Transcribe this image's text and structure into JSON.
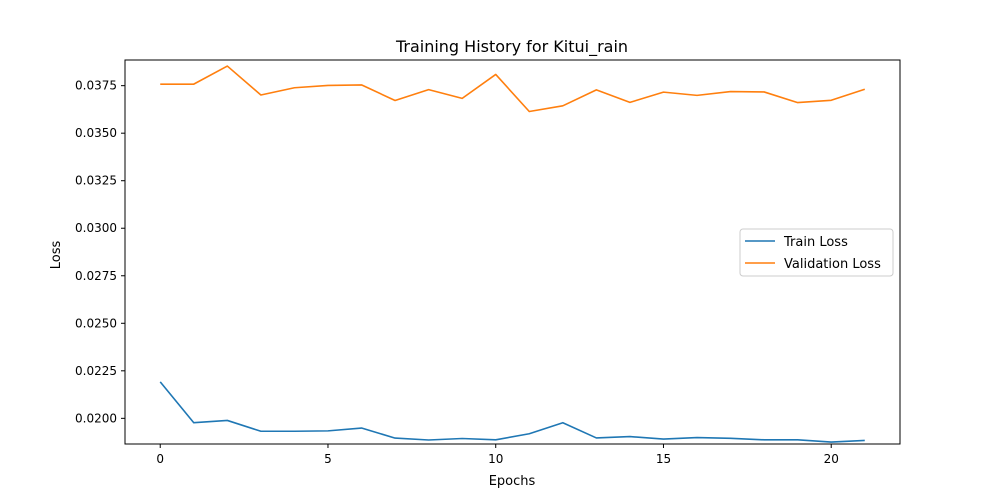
{
  "chart_data": {
    "type": "line",
    "title": "Training History for Kitui_rain",
    "xlabel": "Epochs",
    "ylabel": "Loss",
    "xlim": [
      -1.05,
      22.05
    ],
    "ylim": [
      0.01865,
      0.03885
    ],
    "x_ticks": [
      0,
      5,
      10,
      15,
      20
    ],
    "y_ticks": [
      0.02,
      0.0225,
      0.025,
      0.0275,
      0.03,
      0.0325,
      0.035,
      0.0375
    ],
    "x_tick_labels": [
      "0",
      "5",
      "10",
      "15",
      "20"
    ],
    "y_tick_labels": [
      "0.0200",
      "0.0225",
      "0.0250",
      "0.0275",
      "0.0300",
      "0.0325",
      "0.0350",
      "0.0375"
    ],
    "grid": false,
    "legend_position": "center-right",
    "x": [
      0,
      1,
      2,
      3,
      4,
      5,
      6,
      7,
      8,
      9,
      10,
      11,
      12,
      13,
      14,
      15,
      16,
      17,
      18,
      19,
      20,
      21
    ],
    "series": [
      {
        "name": "Train Loss",
        "color": "#1f77b4",
        "values": [
          0.02192,
          0.01977,
          0.01989,
          0.01932,
          0.01932,
          0.01934,
          0.01949,
          0.01896,
          0.01886,
          0.01894,
          0.01887,
          0.01919,
          0.01977,
          0.01897,
          0.01904,
          0.01891,
          0.01899,
          0.01895,
          0.01887,
          0.01887,
          0.01875,
          0.01884
        ]
      },
      {
        "name": "Validation Loss",
        "color": "#ff7f0e",
        "values": [
          0.03758,
          0.03758,
          0.03853,
          0.03701,
          0.03739,
          0.03751,
          0.03754,
          0.03672,
          0.03729,
          0.03683,
          0.03809,
          0.03614,
          0.03644,
          0.03728,
          0.03662,
          0.03716,
          0.03699,
          0.03719,
          0.03717,
          0.03661,
          0.03673,
          0.03731
        ]
      }
    ]
  }
}
